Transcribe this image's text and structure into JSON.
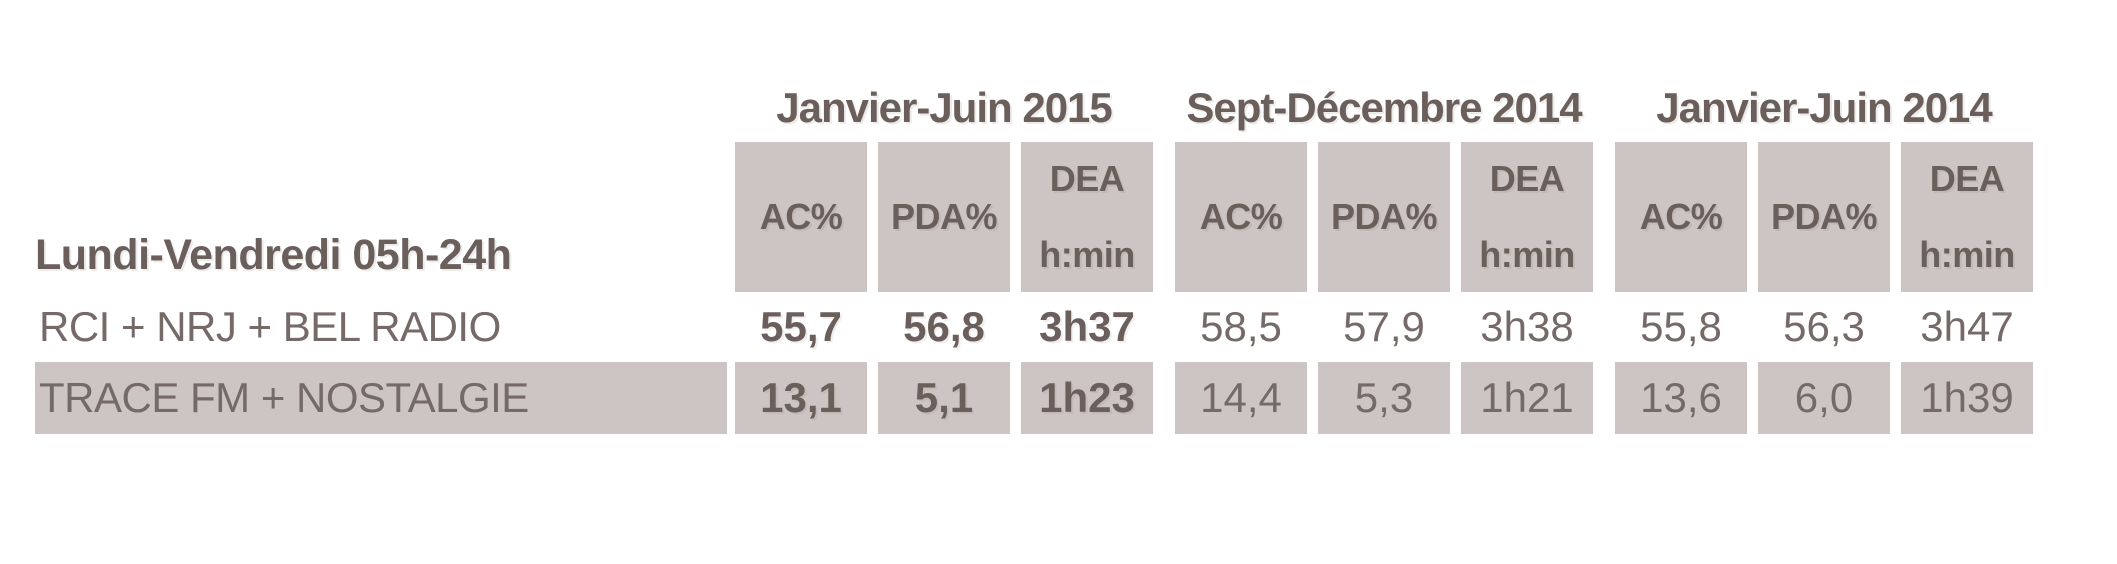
{
  "colors": {
    "cell_bg": "#cdc5c4",
    "header_text": "#6b5f5c",
    "value_text": "#756a68",
    "page_bg": "#ffffff"
  },
  "table": {
    "row_axis_label": "Lundi-Vendredi 05h-24h",
    "periods": [
      "Janvier-Juin 2015",
      "Sept-Décembre 2014",
      "Janvier-Juin 2014"
    ],
    "metrics": [
      {
        "label": "AC%"
      },
      {
        "label": "PDA%"
      },
      {
        "label": "DEA",
        "sub": "h:min"
      }
    ],
    "rows": [
      {
        "label": "RCI + NRJ + BEL RADIO",
        "highlighted": false,
        "values": [
          [
            "55,7",
            "56,8",
            "3h37"
          ],
          [
            "58,5",
            "57,9",
            "3h38"
          ],
          [
            "55,8",
            "56,3",
            "3h47"
          ]
        ]
      },
      {
        "label": "TRACE FM + NOSTALGIE",
        "highlighted": true,
        "values": [
          [
            "13,1",
            "5,1",
            "1h23"
          ],
          [
            "14,4",
            "5,3",
            "1h21"
          ],
          [
            "13,6",
            "6,0",
            "1h39"
          ]
        ]
      }
    ]
  },
  "chart_data": {
    "type": "table",
    "title": "",
    "row_axis_label": "Lundi-Vendredi 05h-24h",
    "column_groups": [
      "Janvier-Juin 2015",
      "Sept-Décembre 2014",
      "Janvier-Juin 2014"
    ],
    "columns_per_group": [
      "AC%",
      "PDA%",
      "DEA h:min"
    ],
    "rows": [
      {
        "name": "RCI + NRJ + BEL RADIO",
        "values": [
          "55,7",
          "56,8",
          "3h37",
          "58,5",
          "57,9",
          "3h38",
          "55,8",
          "56,3",
          "3h47"
        ]
      },
      {
        "name": "TRACE FM + NOSTALGIE",
        "values": [
          "13,1",
          "5,1",
          "1h23",
          "14,4",
          "5,3",
          "1h21",
          "13,6",
          "6,0",
          "1h39"
        ]
      }
    ]
  }
}
